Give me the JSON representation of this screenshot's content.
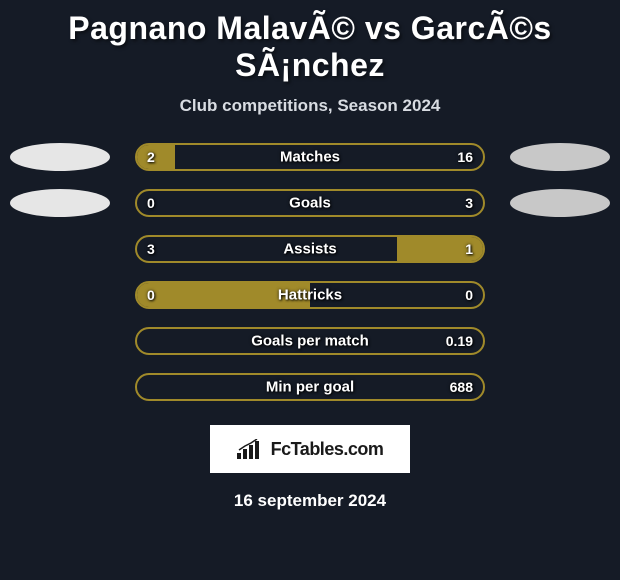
{
  "title": "Pagnano MalavÃ© vs GarcÃ©s SÃ¡nchez",
  "subtitle": "Club competitions, Season 2024",
  "date": "16 september 2024",
  "logo_text": "FcTables.com",
  "colors": {
    "background": "#151b26",
    "bar_fill": "#a08a2a",
    "bar_border": "#a08a2a",
    "text": "#ffffff",
    "crest_left": "#e6e6e6",
    "crest_right": "#c8c8c8"
  },
  "stats": [
    {
      "label": "Matches",
      "left_value": "2",
      "right_value": "16",
      "left_pct": 11,
      "right_pct": 0,
      "show_crests": true
    },
    {
      "label": "Goals",
      "left_value": "0",
      "right_value": "3",
      "left_pct": 0,
      "right_pct": 0,
      "show_crests": true
    },
    {
      "label": "Assists",
      "left_value": "3",
      "right_value": "1",
      "left_pct": 0,
      "right_pct": 25,
      "show_crests": false
    },
    {
      "label": "Hattricks",
      "left_value": "0",
      "right_value": "0",
      "left_pct": 50,
      "right_pct": 0,
      "show_crests": false
    },
    {
      "label": "Goals per match",
      "left_value": "",
      "right_value": "0.19",
      "left_pct": 0,
      "right_pct": 0,
      "show_crests": false
    },
    {
      "label": "Min per goal",
      "left_value": "",
      "right_value": "688",
      "left_pct": 0,
      "right_pct": 0,
      "show_crests": false
    }
  ]
}
